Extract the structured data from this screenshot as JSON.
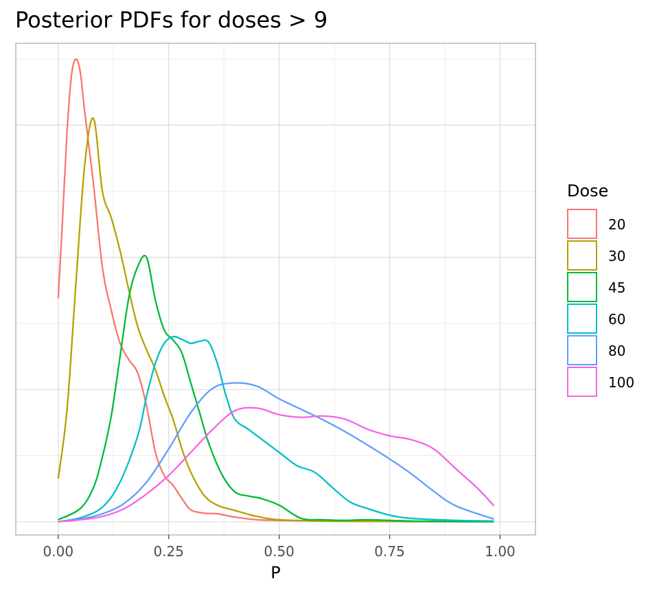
{
  "chart_data": {
    "type": "line",
    "title": "Posterior PDFs for doses > 9",
    "xlabel": "P",
    "ylabel": "",
    "xlim": [
      -0.096,
      1.08
    ],
    "ylim": [
      -0.2,
      7.24
    ],
    "x_ticks": [
      "0.00",
      "0.25",
      "0.50",
      "0.75",
      "1.00"
    ],
    "x_tick_values": [
      0,
      0.25,
      0.5,
      0.75,
      1.0
    ],
    "y_tick_labels_shown": false,
    "grid": true,
    "legend": {
      "title": "Dose",
      "position": "right"
    },
    "series": [
      {
        "name": "20",
        "color": "#F8766D",
        "x": [
          0,
          0.01,
          0.02,
          0.03,
          0.04,
          0.05,
          0.06,
          0.08,
          0.1,
          0.12,
          0.14,
          0.16,
          0.18,
          0.2,
          0.22,
          0.24,
          0.26,
          0.28,
          0.3,
          0.33,
          0.36,
          0.4,
          0.45,
          0.5,
          0.6,
          0.7,
          0.8,
          0.9,
          0.986
        ],
        "y": [
          3.38,
          4.6,
          5.9,
          6.75,
          7.0,
          6.8,
          6.2,
          5.1,
          3.85,
          3.2,
          2.7,
          2.45,
          2.25,
          1.75,
          1.05,
          0.7,
          0.55,
          0.35,
          0.18,
          0.13,
          0.12,
          0.07,
          0.03,
          0.02,
          0.01,
          0.005,
          0.003,
          0.001,
          0
        ]
      },
      {
        "name": "30",
        "color": "#B79F00",
        "x": [
          0,
          0.02,
          0.04,
          0.06,
          0.08,
          0.1,
          0.12,
          0.14,
          0.16,
          0.18,
          0.2,
          0.22,
          0.24,
          0.26,
          0.28,
          0.3,
          0.33,
          0.36,
          0.4,
          0.45,
          0.5,
          0.6,
          0.7,
          0.8,
          0.9,
          0.986
        ],
        "y": [
          0.65,
          1.7,
          3.6,
          5.4,
          6.1,
          5.0,
          4.6,
          4.1,
          3.5,
          2.95,
          2.6,
          2.3,
          1.9,
          1.55,
          1.1,
          0.75,
          0.4,
          0.25,
          0.17,
          0.08,
          0.03,
          0.01,
          0.005,
          0.003,
          0.001,
          0
        ]
      },
      {
        "name": "45",
        "color": "#00BA38",
        "x": [
          0,
          0.05,
          0.08,
          0.1,
          0.12,
          0.14,
          0.16,
          0.18,
          0.2,
          0.22,
          0.24,
          0.26,
          0.28,
          0.3,
          0.32,
          0.34,
          0.37,
          0.4,
          0.43,
          0.46,
          0.5,
          0.55,
          0.6,
          0.65,
          0.7,
          0.8,
          0.9,
          0.986
        ],
        "y": [
          0.03,
          0.2,
          0.52,
          0.98,
          1.6,
          2.5,
          3.4,
          3.86,
          4.0,
          3.35,
          2.9,
          2.75,
          2.55,
          2.1,
          1.65,
          1.2,
          0.72,
          0.45,
          0.39,
          0.35,
          0.25,
          0.05,
          0.03,
          0.02,
          0.03,
          0.01,
          0.003,
          0
        ]
      },
      {
        "name": "60",
        "color": "#00BFC4",
        "x": [
          0,
          0.05,
          0.1,
          0.14,
          0.18,
          0.2,
          0.22,
          0.24,
          0.26,
          0.28,
          0.3,
          0.32,
          0.34,
          0.36,
          0.38,
          0.4,
          0.43,
          0.46,
          0.5,
          0.54,
          0.58,
          0.62,
          0.66,
          0.7,
          0.75,
          0.8,
          0.9,
          0.986
        ],
        "y": [
          0,
          0.06,
          0.22,
          0.6,
          1.3,
          1.9,
          2.4,
          2.7,
          2.8,
          2.76,
          2.7,
          2.73,
          2.72,
          2.4,
          1.9,
          1.55,
          1.4,
          1.25,
          1.05,
          0.85,
          0.75,
          0.52,
          0.3,
          0.2,
          0.1,
          0.05,
          0.02,
          0.01
        ]
      },
      {
        "name": "80",
        "color": "#619CFF",
        "x": [
          0,
          0.05,
          0.1,
          0.15,
          0.2,
          0.25,
          0.3,
          0.35,
          0.4,
          0.45,
          0.5,
          0.55,
          0.6,
          0.65,
          0.7,
          0.75,
          0.8,
          0.85,
          0.9,
          0.986
        ],
        "y": [
          0,
          0.04,
          0.12,
          0.28,
          0.6,
          1.1,
          1.65,
          2.02,
          2.1,
          2.05,
          1.86,
          1.7,
          1.54,
          1.36,
          1.16,
          0.95,
          0.72,
          0.46,
          0.24,
          0.04
        ]
      },
      {
        "name": "100",
        "color": "#F564E3",
        "x": [
          0,
          0.05,
          0.1,
          0.15,
          0.2,
          0.25,
          0.3,
          0.35,
          0.4,
          0.45,
          0.5,
          0.55,
          0.6,
          0.65,
          0.7,
          0.75,
          0.8,
          0.85,
          0.9,
          0.95,
          0.986
        ],
        "y": [
          0,
          0.03,
          0.08,
          0.2,
          0.42,
          0.7,
          1.05,
          1.4,
          1.68,
          1.72,
          1.62,
          1.58,
          1.6,
          1.55,
          1.4,
          1.3,
          1.24,
          1.1,
          0.8,
          0.5,
          0.24
        ]
      }
    ]
  }
}
